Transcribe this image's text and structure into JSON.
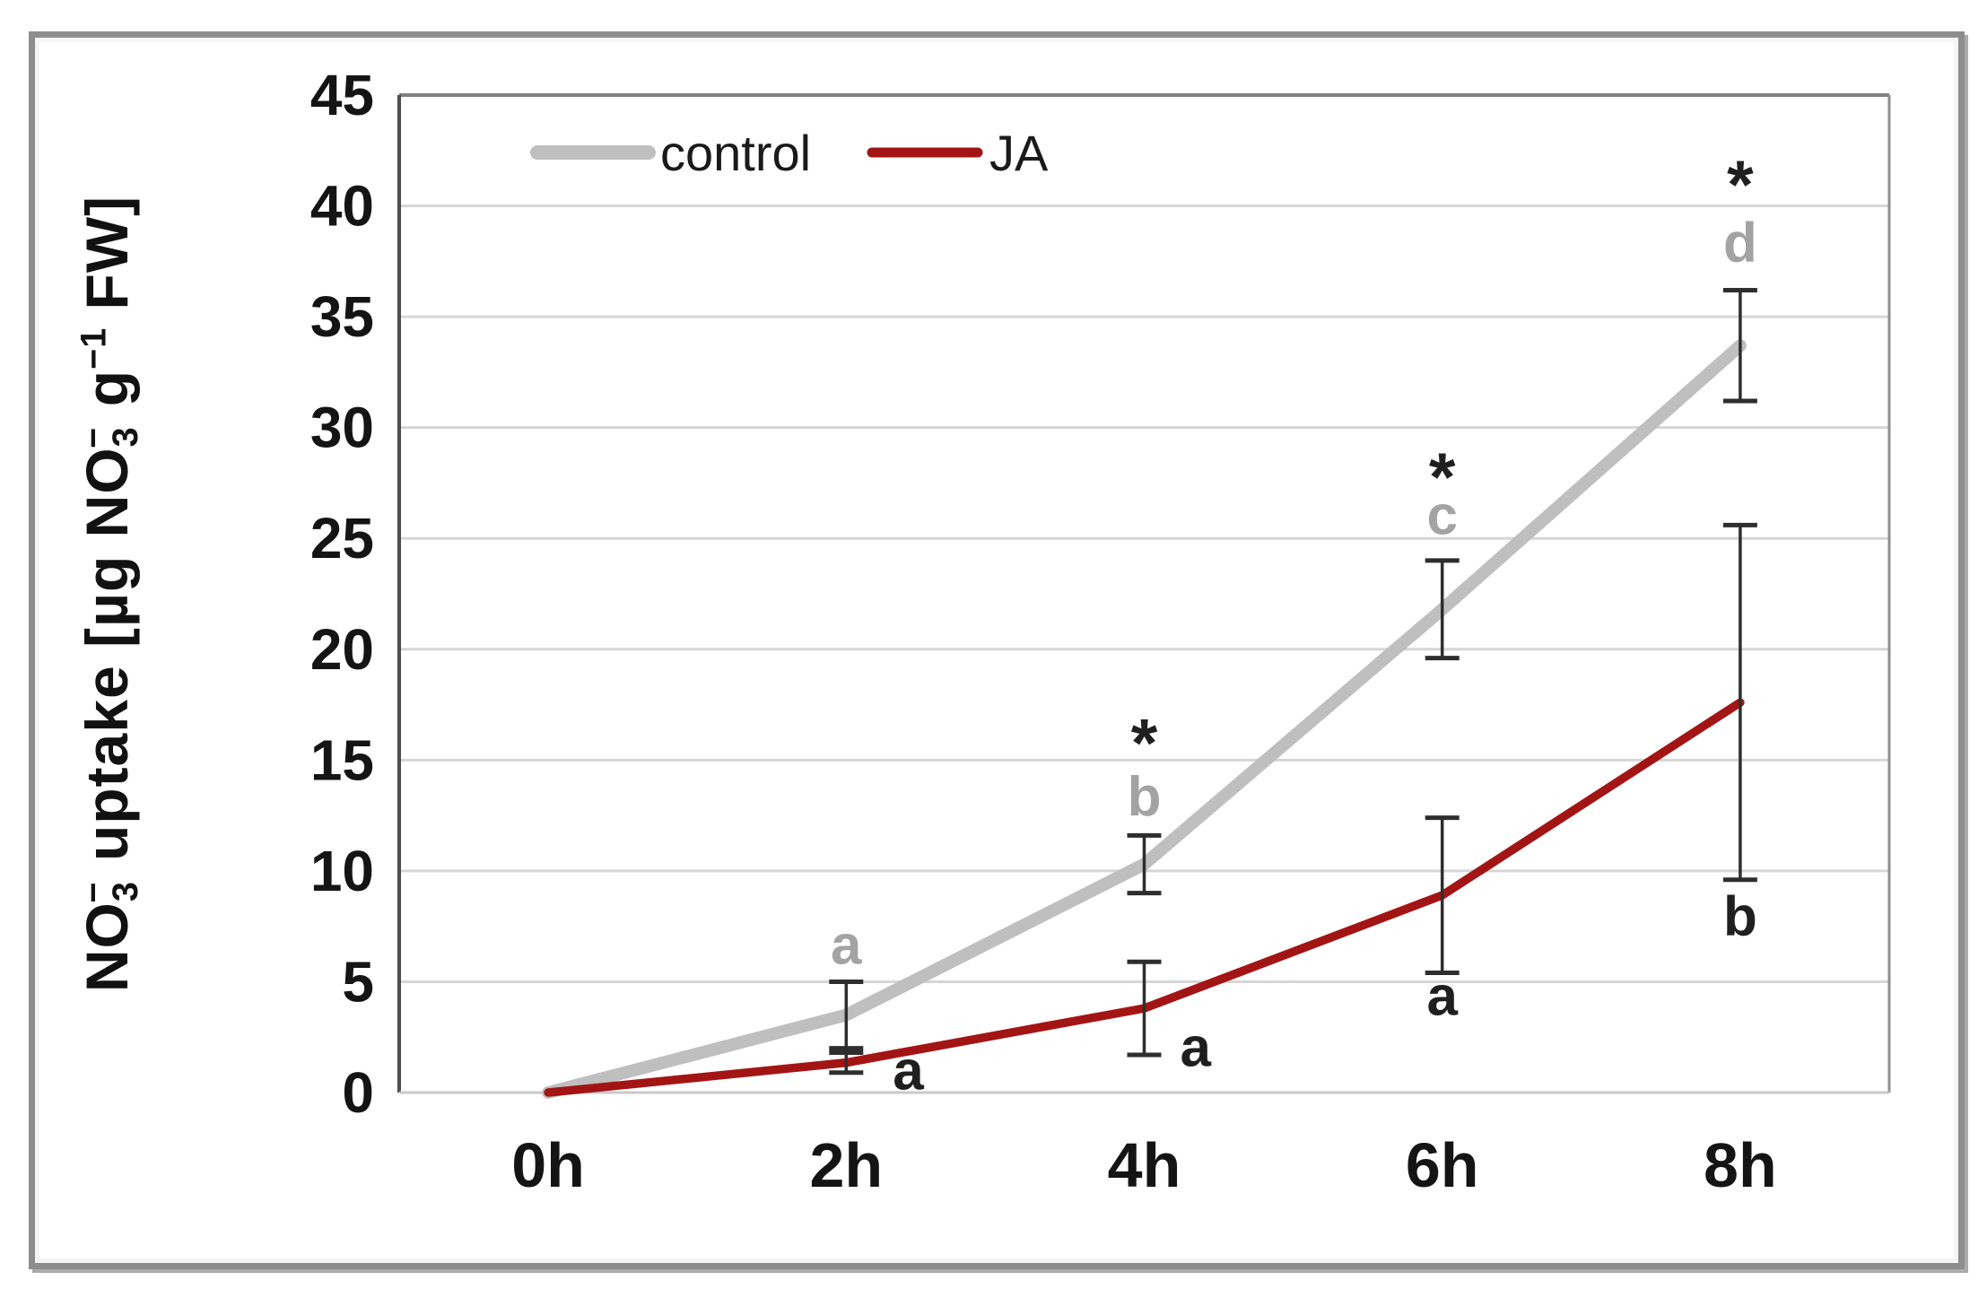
{
  "chart_data": {
    "type": "line",
    "title": "",
    "categories": [
      "0h",
      "2h",
      "4h",
      "6h",
      "8h"
    ],
    "series": [
      {
        "name": "control",
        "color": "#bfbfbf",
        "line_width": 14,
        "values": [
          0,
          3.5,
          10.3,
          21.8,
          33.7
        ],
        "errors": [
          0,
          1.5,
          1.3,
          2.2,
          2.5
        ]
      },
      {
        "name": "JA",
        "color": "#a31515",
        "line_width": 9.5,
        "values": [
          0,
          1.35,
          3.8,
          8.9,
          17.6
        ],
        "errors": [
          0,
          0.45,
          2.1,
          3.5,
          8.0
        ]
      }
    ],
    "ylim": [
      0,
      45
    ],
    "yticks": [
      0,
      5,
      10,
      15,
      20,
      25,
      30,
      35,
      40,
      45
    ],
    "grid": "horizontal",
    "legend_position": "top-inside",
    "ylabel_plain": "NO3- uptake [µg NO3- g-1 FW]",
    "ylabel_segments": [
      {
        "t": "NO",
        "s": "n"
      },
      {
        "t": "3",
        "s": "sub"
      },
      {
        "t": "−",
        "s": "sup-stack"
      },
      {
        "t": " uptake [µg NO",
        "s": "n"
      },
      {
        "t": "3",
        "s": "sub"
      },
      {
        "t": "−",
        "s": "sup-stack"
      },
      {
        "t": " g",
        "s": "n"
      },
      {
        "t": "−1",
        "s": "sup"
      },
      {
        "t": " FW]",
        "s": "n"
      }
    ],
    "annotations": [
      {
        "category": "2h",
        "text": "a",
        "color": "#a3a3a3",
        "y": 5.8,
        "dx": 0,
        "kind": "letter"
      },
      {
        "category": "2h",
        "text": "a",
        "color": "#1f1f1f",
        "y": 0.15,
        "dx": 52,
        "kind": "letter"
      },
      {
        "category": "4h",
        "text": "*",
        "color": "#1f1f1f",
        "y": 14.7,
        "dx": 0,
        "kind": "star"
      },
      {
        "category": "4h",
        "text": "b",
        "color": "#a3a3a3",
        "y": 12.5,
        "dx": 0,
        "kind": "letter"
      },
      {
        "category": "4h",
        "text": "a",
        "color": "#1f1f1f",
        "y": 1.2,
        "dx": 40,
        "kind": "letter"
      },
      {
        "category": "6h",
        "text": "*",
        "color": "#1f1f1f",
        "y": 26.7,
        "dx": 0,
        "kind": "star"
      },
      {
        "category": "6h",
        "text": "c",
        "color": "#a3a3a3",
        "y": 25.2,
        "dx": 0,
        "kind": "letter"
      },
      {
        "category": "6h",
        "text": "a",
        "color": "#1f1f1f",
        "y": 3.5,
        "dx": 0,
        "kind": "letter"
      },
      {
        "category": "8h",
        "text": "*",
        "color": "#1f1f1f",
        "y": 39.9,
        "dx": 0,
        "kind": "star"
      },
      {
        "category": "8h",
        "text": "d",
        "color": "#a3a3a3",
        "y": 37.5,
        "dx": 0,
        "kind": "letter"
      },
      {
        "category": "8h",
        "text": "b",
        "color": "#1f1f1f",
        "y": 7.1,
        "dx": 0,
        "kind": "letter"
      }
    ],
    "colors": {
      "gridline": "#d6d6d6",
      "plot_border_top": "#7f7f7f",
      "plot_border_left": "#4d4d4d",
      "plot_border_right": "#8f8f8f",
      "plot_border_bottom": "#c9c9c9",
      "error_bar": "#2e2e2e",
      "tick_text": "#141414"
    }
  },
  "legend": {
    "items": [
      {
        "label": "control"
      },
      {
        "label": "JA"
      }
    ]
  }
}
